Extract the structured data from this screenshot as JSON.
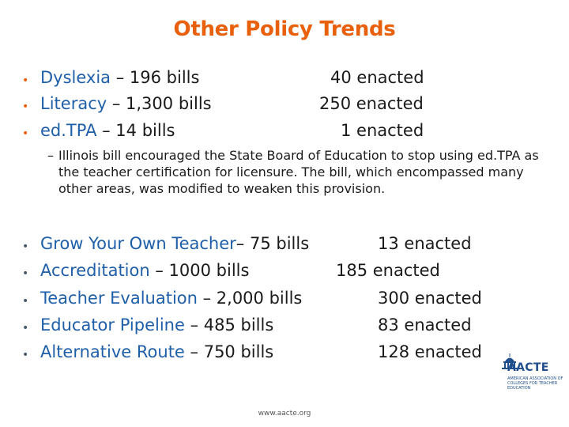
{
  "title": "Other Policy Trends",
  "group_a": [
    {
      "topic": "Dyslexia",
      "rest": " – 196 bills",
      "enacted": "40 enacted"
    },
    {
      "topic": "Literacy",
      "rest": " – 1,300 bills",
      "enacted": "250 enacted"
    },
    {
      "topic": "ed.TPA",
      "rest": " – 14 bills",
      "enacted": "1 enacted"
    }
  ],
  "subnote": {
    "dash": "–",
    "text": "Illinois bill encouraged the State Board of Education to stop using ed.TPA as the teacher certification for licensure.  The bill, which encompassed many other areas, was modified to weaken this provision."
  },
  "group_b": [
    {
      "topic": "Grow Your Own Teacher",
      "rest": "– 75 bills",
      "enacted": "13 enacted"
    },
    {
      "topic": "Accreditation",
      "rest": " – 1000 bills",
      "enacted": "185 enacted"
    },
    {
      "topic": "Teacher Evaluation",
      "rest": " – 2,000 bills",
      "enacted": "300 enacted"
    },
    {
      "topic": "Educator Pipeline",
      "rest": " – 485 bills",
      "enacted": "83 enacted"
    },
    {
      "topic": "Alternative Route",
      "rest": " – 750 bills",
      "enacted": "128 enacted"
    }
  ],
  "bullet_glyph": "•",
  "logo": {
    "name": "AACTE",
    "tag": "AMERICAN ASSOCIATION OF COLLEGES FOR TEACHER EDUCATION",
    "icon": "capitol-building-icon"
  },
  "footer_url": "www.aacte.org",
  "colors": {
    "title": "#e8600c",
    "topic": "#1f5fa8",
    "bullet_a": "#e8600c",
    "bullet_b": "#4a5a6a",
    "logo": "#1f4f8c"
  }
}
